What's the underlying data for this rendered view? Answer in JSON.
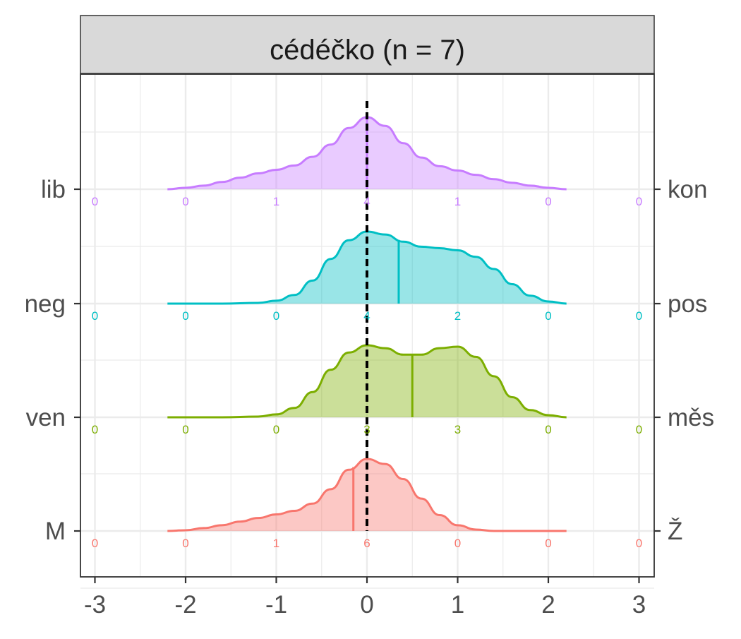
{
  "chart_data": {
    "type": "ridgeline-density",
    "facet_title": "cédéčko (n = 7)",
    "xlim": [
      -3,
      3
    ],
    "x_ticks": [
      "-3",
      "-2",
      "-1",
      "0",
      "1",
      "2",
      "3"
    ],
    "grid": true,
    "reference_line": {
      "x": 0,
      "style": "dashed",
      "color": "#000000"
    },
    "rows": [
      {
        "left_label": "lib",
        "right_label": "kon",
        "color": "#C77CFF",
        "mean": 0.0,
        "count_positions": [
          -3,
          -2,
          -1,
          0,
          1,
          2,
          3
        ],
        "counts": [
          "0",
          "0",
          "1",
          "4",
          "1",
          "0",
          "0"
        ],
        "density_x": [
          -2.2,
          -2.0,
          -1.8,
          -1.6,
          -1.4,
          -1.2,
          -1.0,
          -0.8,
          -0.6,
          -0.4,
          -0.2,
          0.0,
          0.2,
          0.4,
          0.6,
          0.8,
          1.0,
          1.2,
          1.4,
          1.6,
          1.8,
          2.0,
          2.2
        ],
        "density_y": [
          0.0,
          0.02,
          0.05,
          0.1,
          0.16,
          0.22,
          0.27,
          0.33,
          0.45,
          0.62,
          0.85,
          1.0,
          0.88,
          0.64,
          0.44,
          0.32,
          0.26,
          0.2,
          0.14,
          0.09,
          0.05,
          0.02,
          0.0
        ]
      },
      {
        "left_label": "neg",
        "right_label": "pos",
        "color": "#00BFC4",
        "mean": 0.35,
        "count_positions": [
          -3,
          -2,
          -1,
          0,
          1,
          2,
          3
        ],
        "counts": [
          "0",
          "0",
          "0",
          "4",
          "2",
          "0",
          "0"
        ],
        "density_x": [
          -2.2,
          -2.0,
          -1.6,
          -1.2,
          -1.0,
          -0.8,
          -0.6,
          -0.4,
          -0.2,
          0.0,
          0.2,
          0.4,
          0.6,
          0.8,
          1.0,
          1.2,
          1.4,
          1.6,
          1.8,
          2.0,
          2.2
        ],
        "density_y": [
          0.0,
          0.0,
          0.0,
          0.01,
          0.04,
          0.12,
          0.32,
          0.62,
          0.88,
          1.0,
          0.96,
          0.86,
          0.79,
          0.77,
          0.74,
          0.65,
          0.48,
          0.27,
          0.11,
          0.03,
          0.0
        ]
      },
      {
        "left_label": "ven",
        "right_label": "měs",
        "color": "#7CAE00",
        "mean": 0.5,
        "count_positions": [
          -3,
          -2,
          -1,
          0,
          1,
          2,
          3
        ],
        "counts": [
          "0",
          "0",
          "0",
          "3",
          "3",
          "0",
          "0"
        ],
        "density_x": [
          -2.2,
          -2.0,
          -1.6,
          -1.2,
          -1.0,
          -0.8,
          -0.6,
          -0.4,
          -0.2,
          0.0,
          0.2,
          0.4,
          0.6,
          0.8,
          1.0,
          1.2,
          1.4,
          1.6,
          1.8,
          2.0,
          2.2
        ],
        "density_y": [
          0.0,
          0.0,
          0.0,
          0.01,
          0.04,
          0.13,
          0.35,
          0.66,
          0.9,
          1.0,
          0.96,
          0.87,
          0.87,
          0.96,
          0.98,
          0.84,
          0.57,
          0.28,
          0.1,
          0.03,
          0.0
        ]
      },
      {
        "left_label": "M",
        "right_label": "Ž",
        "color": "#F8766D",
        "mean": -0.15,
        "count_positions": [
          -3,
          -2,
          -1,
          0,
          1,
          2,
          3
        ],
        "counts": [
          "0",
          "0",
          "1",
          "6",
          "0",
          "0",
          "0"
        ],
        "density_x": [
          -2.2,
          -2.0,
          -1.8,
          -1.6,
          -1.4,
          -1.2,
          -1.0,
          -0.8,
          -0.6,
          -0.4,
          -0.2,
          0.0,
          0.2,
          0.4,
          0.6,
          0.8,
          1.0,
          1.2,
          1.4,
          1.6,
          1.8,
          2.0,
          2.2
        ],
        "density_y": [
          0.0,
          0.01,
          0.04,
          0.08,
          0.13,
          0.18,
          0.23,
          0.28,
          0.38,
          0.58,
          0.85,
          1.0,
          0.93,
          0.72,
          0.45,
          0.22,
          0.08,
          0.02,
          0.0,
          0.0,
          0.0,
          0.0,
          0.0
        ]
      }
    ]
  }
}
